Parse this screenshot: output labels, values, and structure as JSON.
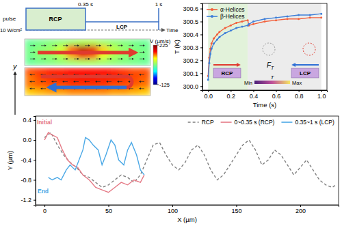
{
  "pulse_diagram": {
    "pulse": "pulse",
    "intensity": "10 W/cm²",
    "rcp": "RCP",
    "lcp": "LCP",
    "switch_time": "0.35 s",
    "end_time": "1 s",
    "time_axis": "Time"
  },
  "chart_data": [
    {
      "type": "heatmap",
      "ylabel": "y",
      "tick_labels": false,
      "colorbar": {
        "label": "V (µm/s)",
        "range": [
          -125,
          225
        ],
        "ticks": [
          225,
          -125
        ]
      },
      "panels": [
        {
          "cells": [
            [
              40,
              45,
              50,
              55,
              60,
              70,
              70,
              60,
              55,
              50,
              45,
              40
            ],
            [
              45,
              55,
              65,
              90,
              150,
              200,
              180,
              120,
              80,
              60,
              50,
              45
            ],
            [
              45,
              55,
              60,
              80,
              130,
              170,
              150,
              100,
              70,
              55,
              50,
              45
            ],
            [
              40,
              45,
              50,
              55,
              60,
              65,
              65,
              60,
              55,
              50,
              45,
              40
            ]
          ]
        },
        {
          "cells": [
            [
              150,
              155,
              160,
              160,
              165,
              165,
              165,
              165,
              160,
              155,
              150,
              150
            ],
            [
              140,
              150,
              155,
              160,
              160,
              165,
              165,
              160,
              160,
              155,
              150,
              145
            ],
            [
              140,
              145,
              150,
              150,
              155,
              155,
              155,
              155,
              150,
              150,
              145,
              140
            ],
            [
              120,
              125,
              130,
              130,
              135,
              135,
              135,
              135,
              130,
              130,
              125,
              120
            ]
          ]
        }
      ]
    },
    {
      "type": "line",
      "xlabel": "Time (s)",
      "ylabel": "T (K)",
      "xlim": [
        -0.05,
        1.05
      ],
      "ylim": [
        299.97,
        300.64
      ],
      "xticks": [
        {
          "value": 0,
          "label": "0.0"
        },
        0.2,
        0.4,
        0.6,
        0.8,
        {
          "value": 1,
          "label": "1.0"
        }
      ],
      "yticks": [
        {
          "value": 300,
          "label": "300.0"
        },
        300.1,
        300.2,
        300.3,
        300.4,
        300.5,
        300.6
      ],
      "legend": "top left",
      "x": [
        0,
        0.01,
        0.02,
        0.03,
        0.05,
        0.08,
        0.1,
        0.15,
        0.2,
        0.25,
        0.3,
        0.35,
        0.36,
        0.4,
        0.5,
        0.6,
        0.7,
        0.8,
        0.9,
        1.0
      ],
      "series": [
        {
          "name": "α-Helices",
          "color": "#f2603c",
          "marker": "circle",
          "values": [
            300.08,
            300.22,
            300.29,
            300.33,
            300.37,
            300.4,
            300.42,
            300.45,
            300.47,
            300.49,
            300.5,
            300.51,
            300.47,
            300.48,
            300.5,
            300.51,
            300.52,
            300.52,
            300.53,
            300.53
          ]
        },
        {
          "name": "β-Helices",
          "color": "#3f7fd8",
          "marker": "circle",
          "values": [
            300.05,
            300.18,
            300.25,
            300.29,
            300.33,
            300.36,
            300.38,
            300.41,
            300.43,
            300.45,
            300.46,
            300.47,
            300.48,
            300.5,
            300.52,
            300.53,
            300.54,
            300.55,
            300.55,
            300.56
          ]
        }
      ],
      "regions": [
        {
          "x": [
            0,
            0.35
          ],
          "color": "#e2f2da"
        },
        {
          "x": [
            0.35,
            1
          ],
          "color": "#ececec"
        }
      ],
      "inset": {
        "rcp": "RCP",
        "lcp": "LCP",
        "force": "F",
        "force_sub": "T",
        "temperature": "T",
        "min": "Min",
        "max": "Max"
      }
    },
    {
      "type": "line",
      "xlabel": "X (µm)",
      "ylabel": "Y (µm)",
      "xlim": [
        -7,
        230
      ],
      "ylim": [
        -1.3,
        0.48
      ],
      "xticks": [
        0,
        50,
        100,
        150,
        200
      ],
      "yticks": [
        0.4,
        {
          "value": 0,
          "label": "0.0"
        },
        -0.4,
        -0.8,
        -1.2
      ],
      "legend": "top right",
      "annotations": [
        "Initial",
        "End"
      ],
      "series": [
        {
          "name": "RCP",
          "color": "#808080",
          "line_style": "dashed",
          "x": [
            0,
            5,
            10,
            15,
            20,
            25,
            30,
            35,
            40,
            45,
            50,
            55,
            60,
            65,
            70,
            75,
            80,
            85,
            90,
            95,
            100,
            105,
            110,
            115,
            120,
            125,
            130,
            135,
            140,
            145,
            150,
            155,
            160,
            165,
            170,
            175,
            180,
            185,
            190,
            195,
            200,
            205,
            210,
            215,
            220,
            225,
            228
          ],
          "values": [
            0.05,
            0.15,
            -0.1,
            -0.3,
            -0.45,
            -0.55,
            -0.7,
            -0.75,
            -0.85,
            -0.95,
            -0.9,
            -0.8,
            -0.7,
            -0.75,
            -0.85,
            -0.7,
            -0.4,
            -0.1,
            -0.05,
            -0.3,
            -0.5,
            -0.6,
            -0.45,
            -0.2,
            -0.1,
            -0.3,
            -0.6,
            -0.8,
            -0.7,
            -0.5,
            -0.3,
            -0.1,
            0,
            -0.2,
            -0.5,
            -0.4,
            -0.2,
            -0.3,
            -0.5,
            -0.7,
            -0.55,
            -0.4,
            -0.6,
            -0.8,
            -0.9,
            -0.95,
            -0.9
          ]
        },
        {
          "name": "0~0.35 s (RCP)",
          "color": "#e57a86",
          "line_style": "solid",
          "x": [
            0,
            3,
            6,
            10,
            14,
            18,
            22,
            26,
            30,
            35,
            40,
            45,
            50,
            55,
            60,
            65,
            70,
            75,
            78
          ],
          "values": [
            0,
            0.15,
            0.1,
            0.05,
            -0.2,
            -0.4,
            -0.5,
            -0.55,
            -0.7,
            -0.8,
            -0.95,
            -1.0,
            -1.05,
            -0.95,
            -0.85,
            -0.9,
            -0.8,
            -0.85,
            -0.7
          ]
        },
        {
          "name": "0.35~1 s (LCP)",
          "color": "#4aa8e6",
          "line_style": "solid",
          "x": [
            78,
            75,
            72,
            68,
            65,
            62,
            58,
            55,
            52,
            48,
            45,
            42,
            38,
            35,
            32,
            30,
            27,
            24,
            20,
            17,
            13,
            10,
            6,
            3
          ],
          "values": [
            -0.7,
            -0.6,
            -0.3,
            -0.05,
            -0.2,
            -0.5,
            -0.4,
            -0.1,
            0,
            -0.3,
            -0.5,
            -0.2,
            -0.1,
            0,
            0.05,
            -0.2,
            -0.4,
            -0.6,
            -0.5,
            -0.6,
            -0.8,
            -0.75,
            -0.8,
            -0.75
          ]
        }
      ]
    }
  ]
}
